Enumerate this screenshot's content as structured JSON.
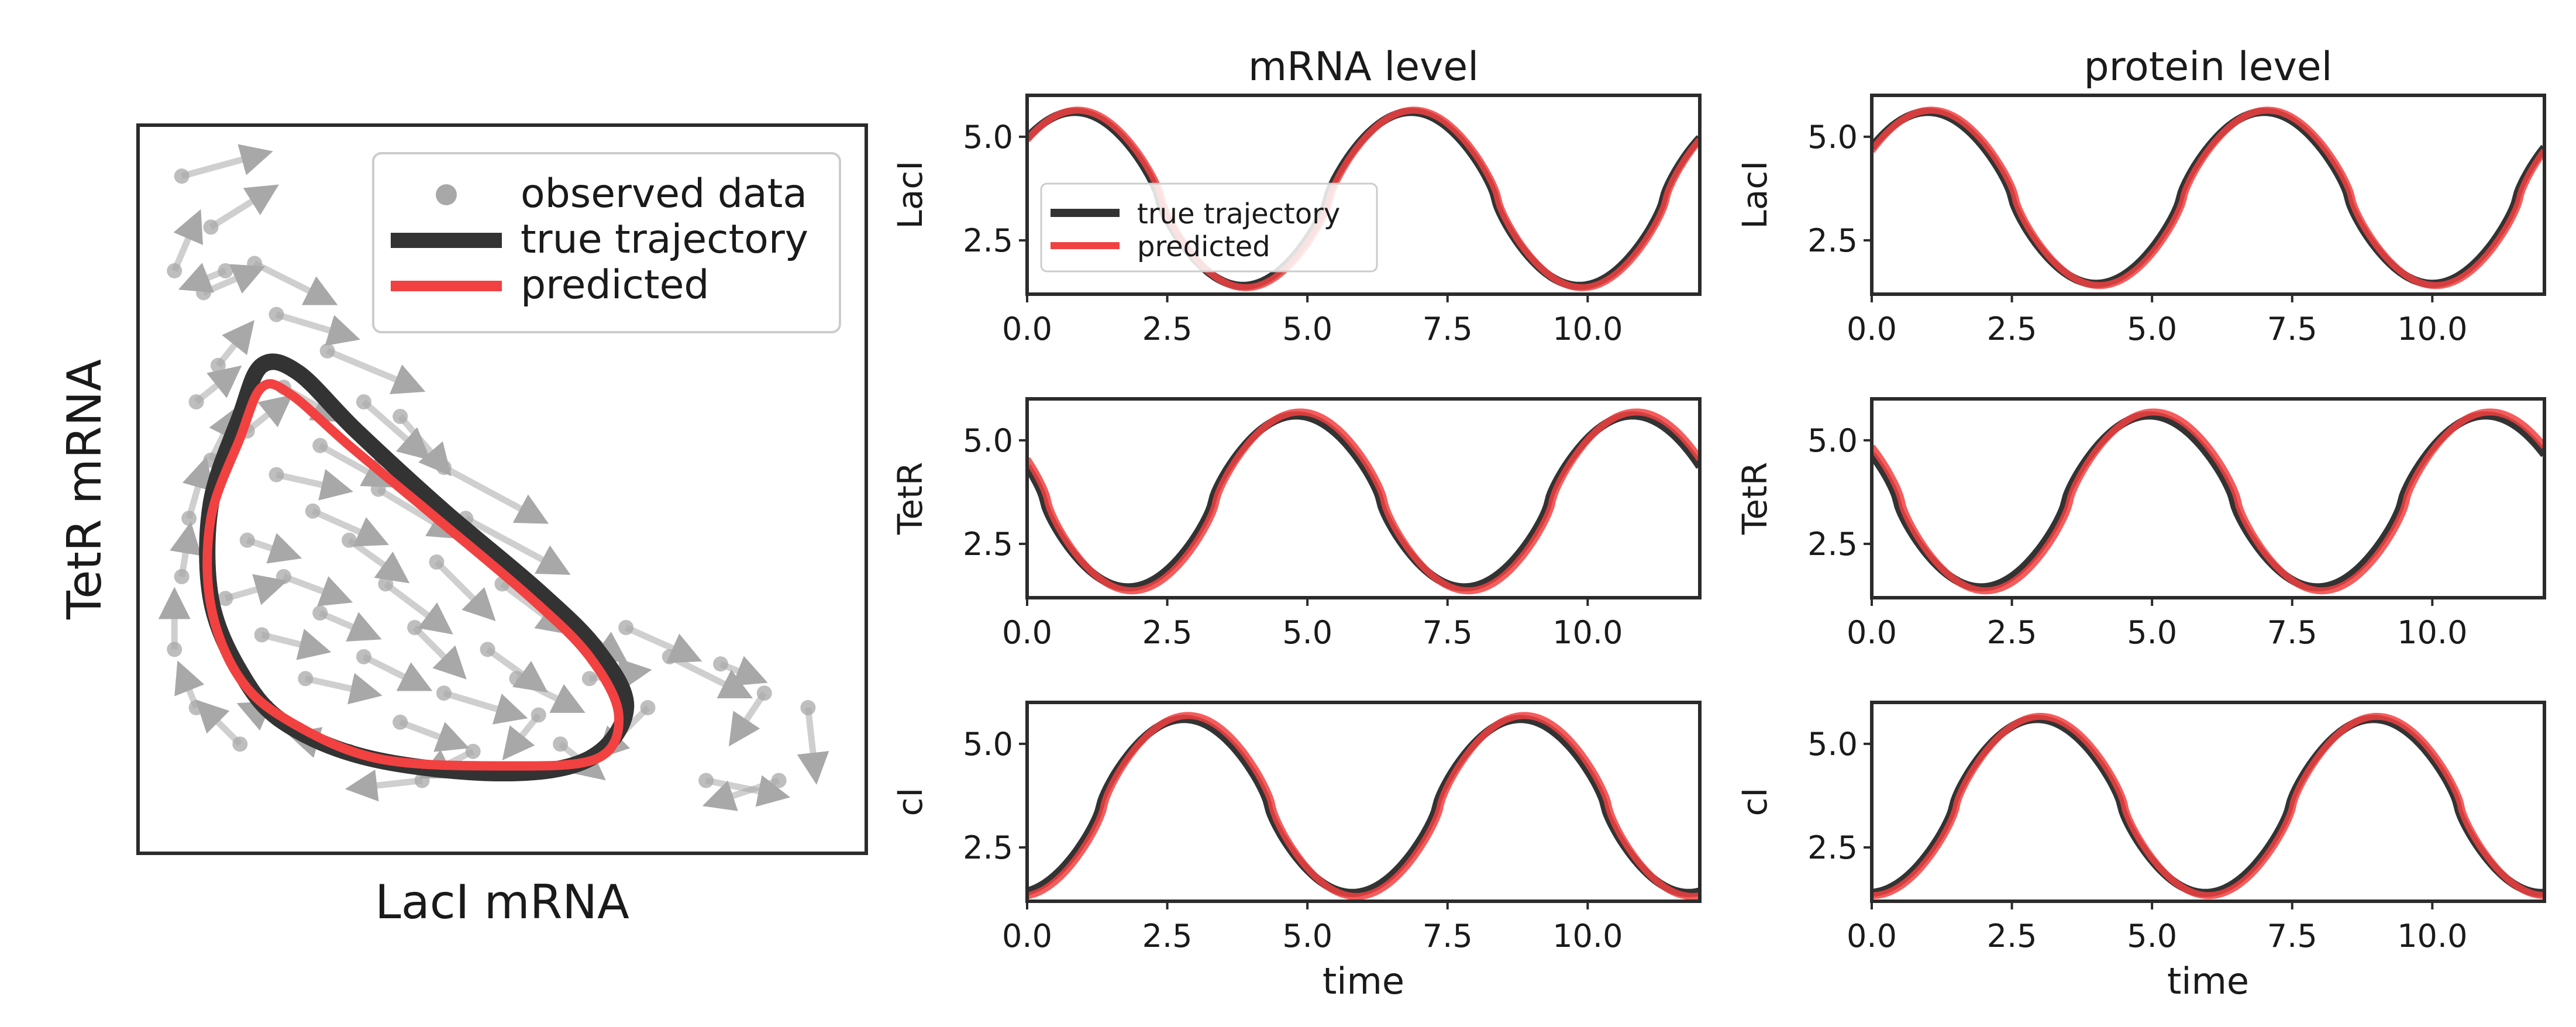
{
  "colors": {
    "true": "#333333",
    "predicted": "#f24141",
    "observed": "#a8a8a8",
    "frame": "#2b2b2b"
  },
  "chart_data": [
    {
      "type": "scatter",
      "xlabel": "LacI mRNA",
      "ylabel": "TetR mRNA",
      "xlim": [
        0,
        1
      ],
      "ylim": [
        0,
        1
      ],
      "ticks": "none",
      "legend": {
        "placement": "top-right",
        "entries": [
          {
            "key": "observed",
            "label": "observed data"
          },
          {
            "key": "true",
            "label": "true trajectory"
          },
          {
            "key": "predicted",
            "label": "predicted"
          }
        ]
      },
      "series": [
        {
          "name": "true trajectory",
          "key": "true",
          "mode": "loop",
          "points": [
            [
              0.17,
              0.67
            ],
            [
              0.14,
              0.6
            ],
            [
              0.1,
              0.48
            ],
            [
              0.1,
              0.35
            ],
            [
              0.14,
              0.25
            ],
            [
              0.2,
              0.18
            ],
            [
              0.32,
              0.13
            ],
            [
              0.5,
              0.11
            ],
            [
              0.62,
              0.13
            ],
            [
              0.67,
              0.2
            ],
            [
              0.63,
              0.28
            ],
            [
              0.55,
              0.36
            ],
            [
              0.42,
              0.47
            ],
            [
              0.3,
              0.58
            ],
            [
              0.22,
              0.66
            ]
          ]
        },
        {
          "name": "predicted",
          "key": "predicted",
          "mode": "loop",
          "points": [
            [
              0.17,
              0.64
            ],
            [
              0.14,
              0.57
            ],
            [
              0.1,
              0.46
            ],
            [
              0.1,
              0.34
            ],
            [
              0.14,
              0.24
            ],
            [
              0.21,
              0.18
            ],
            [
              0.33,
              0.13
            ],
            [
              0.5,
              0.12
            ],
            [
              0.63,
              0.13
            ],
            [
              0.66,
              0.19
            ],
            [
              0.62,
              0.27
            ],
            [
              0.54,
              0.35
            ],
            [
              0.41,
              0.46
            ],
            [
              0.29,
              0.56
            ],
            [
              0.21,
              0.63
            ]
          ]
        }
      ],
      "observed": [
        {
          "x": 0.06,
          "y": 0.93,
          "dx": 0.11,
          "dy": 0.03
        },
        {
          "x": 0.1,
          "y": 0.86,
          "dx": 0.08,
          "dy": 0.05
        },
        {
          "x": 0.05,
          "y": 0.8,
          "dx": 0.03,
          "dy": 0.07
        },
        {
          "x": 0.09,
          "y": 0.77,
          "dx": 0.07,
          "dy": 0.03
        },
        {
          "x": 0.12,
          "y": 0.8,
          "dx": -0.05,
          "dy": -0.02
        },
        {
          "x": 0.16,
          "y": 0.81,
          "dx": 0.1,
          "dy": -0.05
        },
        {
          "x": 0.19,
          "y": 0.74,
          "dx": 0.1,
          "dy": -0.03
        },
        {
          "x": 0.26,
          "y": 0.69,
          "dx": 0.12,
          "dy": -0.05
        },
        {
          "x": 0.31,
          "y": 0.62,
          "dx": 0.08,
          "dy": -0.07
        },
        {
          "x": 0.36,
          "y": 0.6,
          "dx": 0.06,
          "dy": -0.07
        },
        {
          "x": 0.42,
          "y": 0.53,
          "dx": 0.13,
          "dy": -0.07
        },
        {
          "x": 0.45,
          "y": 0.46,
          "dx": 0.13,
          "dy": -0.07
        },
        {
          "x": 0.5,
          "y": 0.37,
          "dx": 0.08,
          "dy": -0.06
        },
        {
          "x": 0.56,
          "y": 0.34,
          "dx": 0.1,
          "dy": -0.07
        },
        {
          "x": 0.67,
          "y": 0.31,
          "dx": 0.09,
          "dy": -0.04
        },
        {
          "x": 0.73,
          "y": 0.27,
          "dx": 0.1,
          "dy": -0.05
        },
        {
          "x": 0.8,
          "y": 0.26,
          "dx": 0.05,
          "dy": -0.02
        },
        {
          "x": 0.86,
          "y": 0.22,
          "dx": -0.04,
          "dy": -0.06
        },
        {
          "x": 0.92,
          "y": 0.2,
          "dx": 0.01,
          "dy": -0.09
        },
        {
          "x": 0.88,
          "y": 0.1,
          "dx": -0.09,
          "dy": -0.03
        },
        {
          "x": 0.78,
          "y": 0.1,
          "dx": 0.1,
          "dy": -0.02
        },
        {
          "x": 0.7,
          "y": 0.2,
          "dx": -0.06,
          "dy": -0.06
        },
        {
          "x": 0.62,
          "y": 0.24,
          "dx": 0.07,
          "dy": 0.01
        },
        {
          "x": 0.55,
          "y": 0.19,
          "dx": -0.04,
          "dy": -0.05
        },
        {
          "x": 0.46,
          "y": 0.14,
          "dx": -0.06,
          "dy": -0.03
        },
        {
          "x": 0.39,
          "y": 0.1,
          "dx": -0.09,
          "dy": -0.01
        },
        {
          "x": 0.29,
          "y": 0.14,
          "dx": -0.07,
          "dy": 0.02
        },
        {
          "x": 0.22,
          "y": 0.17,
          "dx": -0.07,
          "dy": 0.03
        },
        {
          "x": 0.14,
          "y": 0.15,
          "dx": -0.05,
          "dy": 0.05
        },
        {
          "x": 0.08,
          "y": 0.2,
          "dx": -0.02,
          "dy": 0.05
        },
        {
          "x": 0.05,
          "y": 0.28,
          "dx": 0,
          "dy": 0.07
        },
        {
          "x": 0.06,
          "y": 0.38,
          "dx": 0.01,
          "dy": 0.06
        },
        {
          "x": 0.07,
          "y": 0.46,
          "dx": 0.02,
          "dy": 0.07
        },
        {
          "x": 0.1,
          "y": 0.54,
          "dx": 0.03,
          "dy": 0.06
        },
        {
          "x": 0.15,
          "y": 0.58,
          "dx": 0.05,
          "dy": 0.04
        },
        {
          "x": 0.19,
          "y": 0.52,
          "dx": 0.09,
          "dy": -0.02
        },
        {
          "x": 0.24,
          "y": 0.47,
          "dx": 0.09,
          "dy": -0.04
        },
        {
          "x": 0.29,
          "y": 0.43,
          "dx": 0.07,
          "dy": -0.05
        },
        {
          "x": 0.34,
          "y": 0.37,
          "dx": 0.08,
          "dy": -0.06
        },
        {
          "x": 0.38,
          "y": 0.31,
          "dx": 0.06,
          "dy": -0.06
        },
        {
          "x": 0.31,
          "y": 0.27,
          "dx": 0.08,
          "dy": -0.04
        },
        {
          "x": 0.25,
          "y": 0.33,
          "dx": 0.07,
          "dy": -0.03
        },
        {
          "x": 0.2,
          "y": 0.38,
          "dx": 0.08,
          "dy": -0.03
        },
        {
          "x": 0.15,
          "y": 0.43,
          "dx": 0.06,
          "dy": -0.02
        },
        {
          "x": 0.17,
          "y": 0.3,
          "dx": 0.08,
          "dy": -0.02
        },
        {
          "x": 0.23,
          "y": 0.24,
          "dx": 0.09,
          "dy": -0.02
        },
        {
          "x": 0.42,
          "y": 0.22,
          "dx": 0.1,
          "dy": -0.03
        },
        {
          "x": 0.48,
          "y": 0.28,
          "dx": 0.07,
          "dy": -0.05
        },
        {
          "x": 0.12,
          "y": 0.35,
          "dx": 0.07,
          "dy": 0.02
        },
        {
          "x": 0.36,
          "y": 0.18,
          "dx": 0.08,
          "dy": -0.03
        },
        {
          "x": 0.58,
          "y": 0.15,
          "dx": 0.05,
          "dy": -0.04
        },
        {
          "x": 0.2,
          "y": 0.64,
          "dx": 0.07,
          "dy": -0.04
        },
        {
          "x": 0.25,
          "y": 0.56,
          "dx": 0.09,
          "dy": -0.05
        },
        {
          "x": 0.33,
          "y": 0.5,
          "dx": 0.1,
          "dy": -0.06
        },
        {
          "x": 0.11,
          "y": 0.67,
          "dx": 0.04,
          "dy": 0.05
        },
        {
          "x": 0.08,
          "y": 0.62,
          "dx": 0.05,
          "dy": 0.04
        },
        {
          "x": 0.41,
          "y": 0.4,
          "dx": 0.07,
          "dy": -0.07
        },
        {
          "x": 0.52,
          "y": 0.24,
          "dx": 0.08,
          "dy": -0.04
        }
      ]
    },
    {
      "type": "line",
      "title": "mRNA level",
      "ylabel": "LacI",
      "xlabel": "",
      "xlim": [
        0,
        12
      ],
      "ylim": [
        1.2,
        6.0
      ],
      "xticks": [
        "0.0",
        "2.5",
        "5.0",
        "7.5",
        "10.0"
      ],
      "yticks": [
        "2.5",
        "5.0"
      ],
      "wave": {
        "period": 6,
        "peak_time": 0.85,
        "min": 1.4,
        "max": 5.6,
        "shape": 1.3
      },
      "series": [
        {
          "name": "true trajectory",
          "key": "true",
          "phase_shift": 0,
          "amplitude_scale": 1.0
        },
        {
          "name": "predicted",
          "key": "predicted",
          "phase_shift": 0.05,
          "amplitude_scale": 1.02
        }
      ],
      "legend": {
        "placement": "lower-left",
        "entries": [
          {
            "key": "true",
            "label": "true trajectory"
          },
          {
            "key": "predicted",
            "label": "predicted"
          }
        ]
      }
    },
    {
      "type": "line",
      "title": "protein level",
      "ylabel": "LacI",
      "xlabel": "",
      "xlim": [
        0,
        12
      ],
      "ylim": [
        1.2,
        6.0
      ],
      "xticks": [
        "0.0",
        "2.5",
        "5.0",
        "7.5",
        "10.0"
      ],
      "yticks": [
        "2.5",
        "5.0"
      ],
      "wave": {
        "period": 6,
        "peak_time": 1.0,
        "min": 1.45,
        "max": 5.6,
        "shape": 1.3
      },
      "series": [
        {
          "name": "true trajectory",
          "key": "true",
          "phase_shift": 0,
          "amplitude_scale": 1.0
        },
        {
          "name": "predicted",
          "key": "predicted",
          "phase_shift": 0.06,
          "amplitude_scale": 1.02
        }
      ]
    },
    {
      "type": "line",
      "title": "",
      "ylabel": "TetR",
      "xlabel": "",
      "xlim": [
        0,
        12
      ],
      "ylim": [
        1.2,
        6.0
      ],
      "xticks": [
        "0.0",
        "2.5",
        "5.0",
        "7.5",
        "10.0"
      ],
      "yticks": [
        "2.5",
        "5.0"
      ],
      "wave": {
        "period": 6,
        "peak_time": 4.8,
        "min": 1.45,
        "max": 5.6,
        "shape": 1.3
      },
      "series": [
        {
          "name": "true trajectory",
          "key": "true",
          "phase_shift": 0,
          "amplitude_scale": 1.0
        },
        {
          "name": "predicted",
          "key": "predicted",
          "phase_shift": 0.07,
          "amplitude_scale": 1.04
        }
      ]
    },
    {
      "type": "line",
      "title": "",
      "ylabel": "TetR",
      "xlabel": "",
      "xlim": [
        0,
        12
      ],
      "ylim": [
        1.2,
        6.0
      ],
      "xticks": [
        "0.0",
        "2.5",
        "5.0",
        "7.5",
        "10.0"
      ],
      "yticks": [
        "2.5",
        "5.0"
      ],
      "wave": {
        "period": 6,
        "peak_time": 4.95,
        "min": 1.45,
        "max": 5.6,
        "shape": 1.3
      },
      "series": [
        {
          "name": "true trajectory",
          "key": "true",
          "phase_shift": 0,
          "amplitude_scale": 1.0
        },
        {
          "name": "predicted",
          "key": "predicted",
          "phase_shift": 0.08,
          "amplitude_scale": 1.04
        }
      ]
    },
    {
      "type": "line",
      "title": "",
      "ylabel": "cI",
      "xlabel": "time",
      "xlim": [
        0,
        12
      ],
      "ylim": [
        1.2,
        6.0
      ],
      "xticks": [
        "0.0",
        "2.5",
        "5.0",
        "7.5",
        "10.0"
      ],
      "yticks": [
        "2.5",
        "5.0"
      ],
      "wave": {
        "period": 6,
        "peak_time": 2.8,
        "min": 1.4,
        "max": 5.6,
        "shape": 1.3
      },
      "series": [
        {
          "name": "true trajectory",
          "key": "true",
          "phase_shift": 0,
          "amplitude_scale": 1.0
        },
        {
          "name": "predicted",
          "key": "predicted",
          "phase_shift": 0.07,
          "amplitude_scale": 1.04
        }
      ]
    },
    {
      "type": "line",
      "title": "",
      "ylabel": "cI",
      "xlabel": "time",
      "xlim": [
        0,
        12
      ],
      "ylim": [
        1.2,
        6.0
      ],
      "xticks": [
        "0.0",
        "2.5",
        "5.0",
        "7.5",
        "10.0"
      ],
      "yticks": [
        "2.5",
        "5.0"
      ],
      "wave": {
        "period": 6,
        "peak_time": 2.95,
        "min": 1.4,
        "max": 5.6,
        "shape": 1.3
      },
      "series": [
        {
          "name": "true trajectory",
          "key": "true",
          "phase_shift": 0,
          "amplitude_scale": 1.0
        },
        {
          "name": "predicted",
          "key": "predicted",
          "phase_shift": 0.06,
          "amplitude_scale": 1.03
        }
      ]
    }
  ]
}
